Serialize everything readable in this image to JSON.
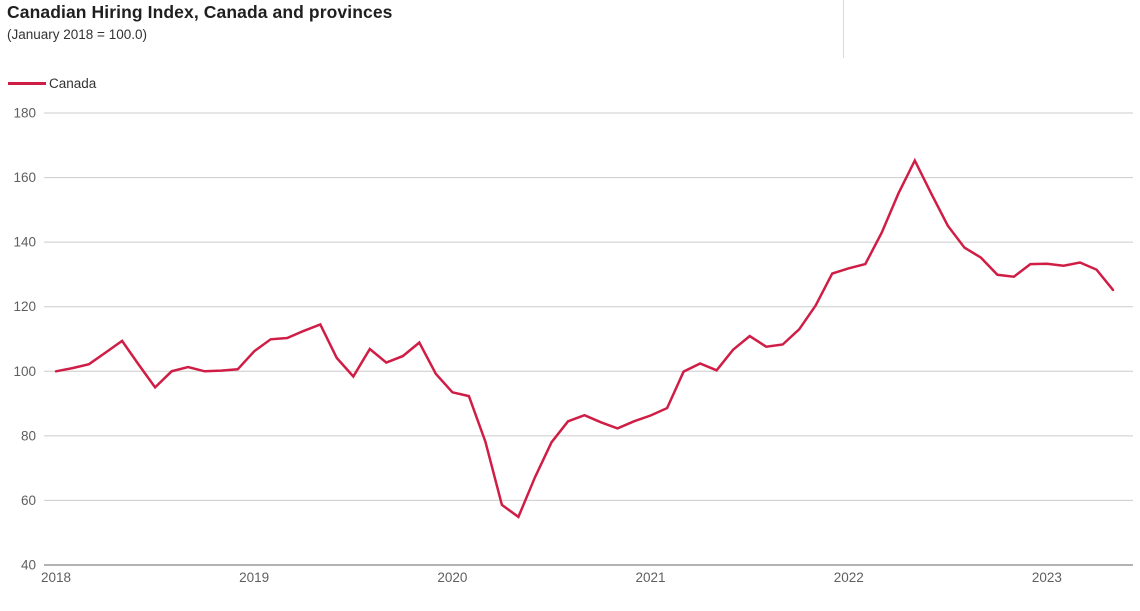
{
  "header": {
    "title": "Canadian Hiring Index, Canada and provinces",
    "subtitle": "(January 2018 = 100.0)"
  },
  "legend": {
    "items": [
      {
        "label": "Canada",
        "color": "#d01d45"
      }
    ]
  },
  "colors": {
    "line": "#d01d45",
    "grid": "#cccccc",
    "axis": "#b3b3b3",
    "tick_text": "#5f5f5f",
    "title_text": "#1f1f1f"
  },
  "chart_data": {
    "type": "line",
    "title": "Canadian Hiring Index, Canada and provinces",
    "subtitle": "(January 2018 = 100.0)",
    "frequency": "monthly",
    "start_month": "2018-01",
    "end_month": "2023-05",
    "x_tick_labels": [
      "2018",
      "2019",
      "2020",
      "2021",
      "2022",
      "2023"
    ],
    "y_ticks": [
      40,
      60,
      80,
      100,
      120,
      140,
      160,
      180
    ],
    "ylim": [
      40,
      180
    ],
    "grid": "horizontal",
    "legend_position": "top-left",
    "series": [
      {
        "name": "Canada",
        "color": "#d01d45",
        "values": [
          100.0,
          101.0,
          102.2,
          105.8,
          109.4,
          102.1,
          95.0,
          100.0,
          101.3,
          100.0,
          100.2,
          100.6,
          106.2,
          109.9,
          110.3,
          112.5,
          114.5,
          104.1,
          98.4,
          106.9,
          102.7,
          104.7,
          108.9,
          99.2,
          93.5,
          92.3,
          78.2,
          58.6,
          54.9,
          67.2,
          78.0,
          84.5,
          86.4,
          84.2,
          82.3,
          84.5,
          86.3,
          88.6,
          99.9,
          102.4,
          100.3,
          106.7,
          110.9,
          107.6,
          108.3,
          113.0,
          120.4,
          130.3,
          131.9,
          133.2,
          143.0,
          155.0,
          165.3,
          155.0,
          145.1,
          138.3,
          135.2,
          129.9,
          129.3,
          133.2,
          133.3,
          132.7,
          133.7,
          131.5,
          125.2
        ]
      }
    ]
  }
}
